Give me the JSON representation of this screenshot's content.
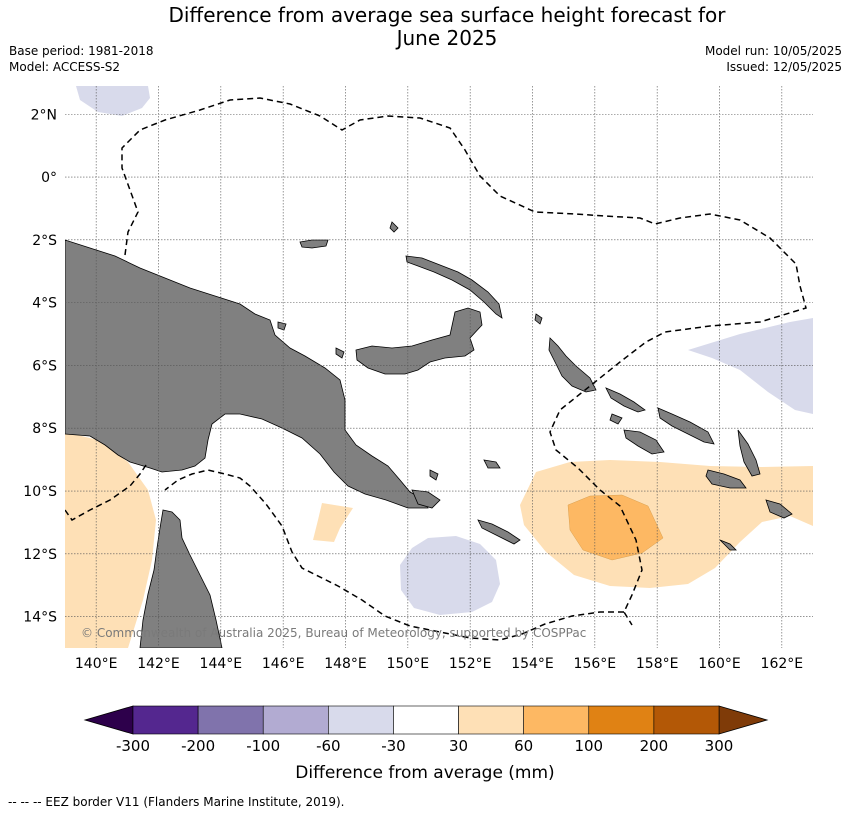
{
  "header": {
    "title_line1": "Difference from average sea surface height forecast for",
    "title_line2": "June 2025",
    "base_period": "Base period: 1981-2018",
    "model": "Model: ACCESS-S2",
    "model_run": "Model run: 10/05/2025",
    "issued": "Issued: 12/05/2025"
  },
  "map": {
    "lon_range": [
      139,
      163
    ],
    "lat_range": [
      -15,
      2.9
    ],
    "lon_ticks": [
      "140°E",
      "142°E",
      "144°E",
      "146°E",
      "148°E",
      "150°E",
      "152°E",
      "154°E",
      "156°E",
      "158°E",
      "160°E",
      "162°E"
    ],
    "lat_ticks": [
      "2°N",
      "0°",
      "2°S",
      "4°S",
      "6°S",
      "8°S",
      "10°S",
      "12°S",
      "14°S"
    ],
    "grid": true,
    "copyright": "© Commonwealth of Australia 2025, Bureau of Meteorology, supported by COSPPac",
    "colors": {
      "land": "#808080",
      "ocean": "#ffffff",
      "eez_line": "#000000"
    }
  },
  "colorbar": {
    "label": "Difference from average (mm)",
    "ticks": [
      "-300",
      "-200",
      "-100",
      "-60",
      "-30",
      "30",
      "60",
      "100",
      "200",
      "300"
    ],
    "colors": [
      "#54278f",
      "#8073ac",
      "#b2abd2",
      "#d8daeb",
      "#ffffff",
      "#fee0b6",
      "#fdb863",
      "#e08214",
      "#b35806"
    ],
    "low_extend_color": "#2d004b",
    "high_extend_color": "#7f3b08"
  },
  "footnote": "--  --  -- EEZ border V11 (Flanders Marine Institute, 2019)."
}
